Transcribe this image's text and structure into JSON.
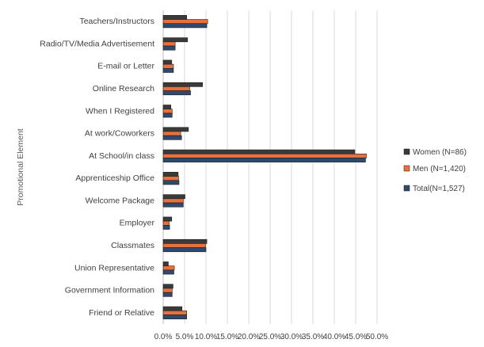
{
  "chart_data": {
    "type": "bar",
    "orientation": "horizontal",
    "ylabel": "Promotional Element",
    "xlabel": "",
    "xlim": [
      0,
      50
    ],
    "x_ticks": [
      "0.0%",
      "5.0%",
      "10.0%",
      "15.0%",
      "20.0%",
      "25.0%",
      "30.0%",
      "35.0%",
      "40.0%",
      "45.0%",
      "50.0%"
    ],
    "grid": "vertical",
    "legend_position": "right",
    "categories": [
      "Teachers/Instructors",
      "Radio/TV/Media Advertisement",
      "E-mail or Letter",
      "Online Research",
      "When I Registered",
      "At work/Coworkers",
      "At School/in class",
      "Apprenticeship Office",
      "Welcome Package",
      "Employer",
      "Classmates",
      "Union Representative",
      "Government Information",
      "Friend or Relative"
    ],
    "series": [
      {
        "name": "Women (N=86)",
        "color": "#3a3a3a",
        "values": [
          5.5,
          5.7,
          2.0,
          9.2,
          1.8,
          5.9,
          44.8,
          3.5,
          5.1,
          2.0,
          10.2,
          1.2,
          2.3,
          4.4
        ]
      },
      {
        "name": "Men (N=1,420)",
        "color": "#e8703a",
        "values": [
          10.4,
          2.8,
          2.4,
          6.2,
          2.1,
          4.1,
          47.5,
          3.6,
          4.7,
          1.4,
          9.9,
          2.6,
          2.1,
          5.5
        ]
      },
      {
        "name": "Total(N=1,527)",
        "color": "#2e4a6e",
        "values": [
          10.2,
          2.8,
          2.4,
          6.4,
          2.1,
          4.3,
          47.3,
          3.7,
          4.7,
          1.5,
          10.0,
          2.5,
          2.1,
          5.5
        ]
      }
    ]
  }
}
